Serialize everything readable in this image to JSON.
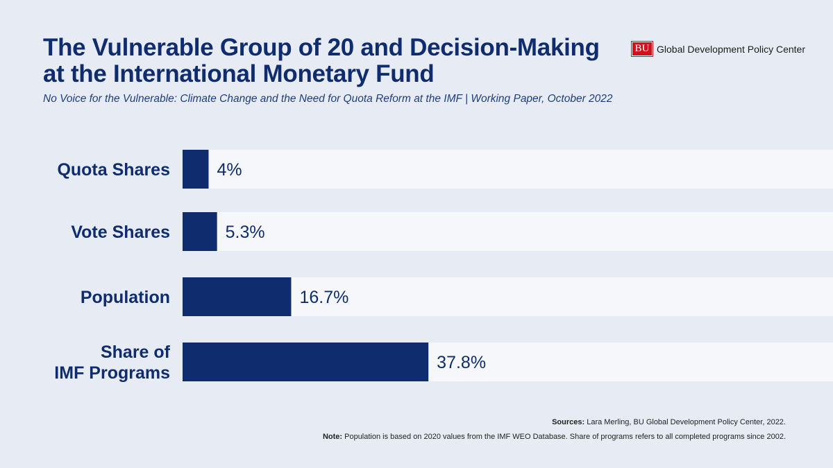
{
  "header": {
    "title_line1": "The Vulnerable Group of 20 and Decision-Making",
    "title_line2": "at the International Monetary Fund",
    "subtitle": "No Voice for the Vulnerable: Climate Change and the Need for Quota Reform at the IMF | Working Paper, October 2022"
  },
  "logo": {
    "mark": "BU",
    "text": "Global Development Policy Center"
  },
  "chart_data": {
    "type": "bar",
    "orientation": "horizontal",
    "title": "The Vulnerable Group of 20 and Decision-Making at the International Monetary Fund",
    "categories": [
      [
        "Quota Shares"
      ],
      [
        "Vote Shares"
      ],
      [
        "Population"
      ],
      [
        "Share of",
        "IMF Programs"
      ]
    ],
    "values": [
      4,
      5.3,
      16.7,
      37.8
    ],
    "value_labels": [
      "4%",
      "5.3%",
      "16.7%",
      "37.8%"
    ],
    "xlim": [
      0,
      100
    ],
    "unit": "%",
    "bar_color": "#0f2d6e",
    "track_color": "#f5f7fb",
    "label_color": "#0f2d6e"
  },
  "footer": {
    "sources_label": "Sources:",
    "sources_text": " Lara Merling, BU Global Development Policy Center, 2022.",
    "note_label": "Note:",
    "note_text": " Population is based on 2020 values from the IMF WEO Database. Share of programs refers to all completed programs since 2002."
  }
}
